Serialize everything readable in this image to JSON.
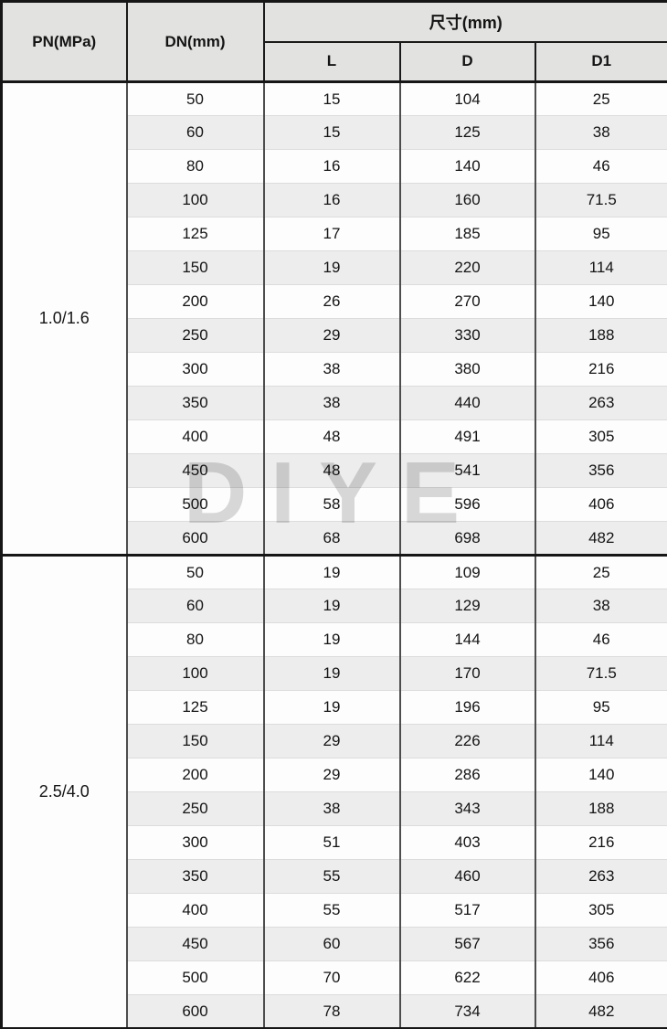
{
  "table": {
    "header": {
      "pn": "PN(MPa)",
      "dn": "DN(mm)",
      "size": "尺寸(mm)",
      "sub_columns": [
        "L",
        "D",
        "D1"
      ]
    },
    "groups": [
      {
        "pn": "1.0/1.6",
        "rows": [
          [
            "50",
            "15",
            "104",
            "25"
          ],
          [
            "60",
            "15",
            "125",
            "38"
          ],
          [
            "80",
            "16",
            "140",
            "46"
          ],
          [
            "100",
            "16",
            "160",
            "71.5"
          ],
          [
            "125",
            "17",
            "185",
            "95"
          ],
          [
            "150",
            "19",
            "220",
            "114"
          ],
          [
            "200",
            "26",
            "270",
            "140"
          ],
          [
            "250",
            "29",
            "330",
            "188"
          ],
          [
            "300",
            "38",
            "380",
            "216"
          ],
          [
            "350",
            "38",
            "440",
            "263"
          ],
          [
            "400",
            "48",
            "491",
            "305"
          ],
          [
            "450",
            "48",
            "541",
            "356"
          ],
          [
            "500",
            "58",
            "596",
            "406"
          ],
          [
            "600",
            "68",
            "698",
            "482"
          ]
        ]
      },
      {
        "pn": "2.5/4.0",
        "rows": [
          [
            "50",
            "19",
            "109",
            "25"
          ],
          [
            "60",
            "19",
            "129",
            "38"
          ],
          [
            "80",
            "19",
            "144",
            "46"
          ],
          [
            "100",
            "19",
            "170",
            "71.5"
          ],
          [
            "125",
            "19",
            "196",
            "95"
          ],
          [
            "150",
            "29",
            "226",
            "114"
          ],
          [
            "200",
            "29",
            "286",
            "140"
          ],
          [
            "250",
            "38",
            "343",
            "188"
          ],
          [
            "300",
            "51",
            "403",
            "216"
          ],
          [
            "350",
            "55",
            "460",
            "263"
          ],
          [
            "400",
            "55",
            "517",
            "305"
          ],
          [
            "450",
            "60",
            "567",
            "356"
          ],
          [
            "500",
            "70",
            "622",
            "406"
          ],
          [
            "600",
            "78",
            "734",
            "482"
          ]
        ]
      }
    ]
  },
  "watermark": {
    "text": "DIYE"
  },
  "colors": {
    "header_bg": "#e2e2e0",
    "band_bg": "#ededed",
    "border_dark": "#161616",
    "border_mid": "#4d4d4d",
    "watermark": "#d2d2d2"
  }
}
